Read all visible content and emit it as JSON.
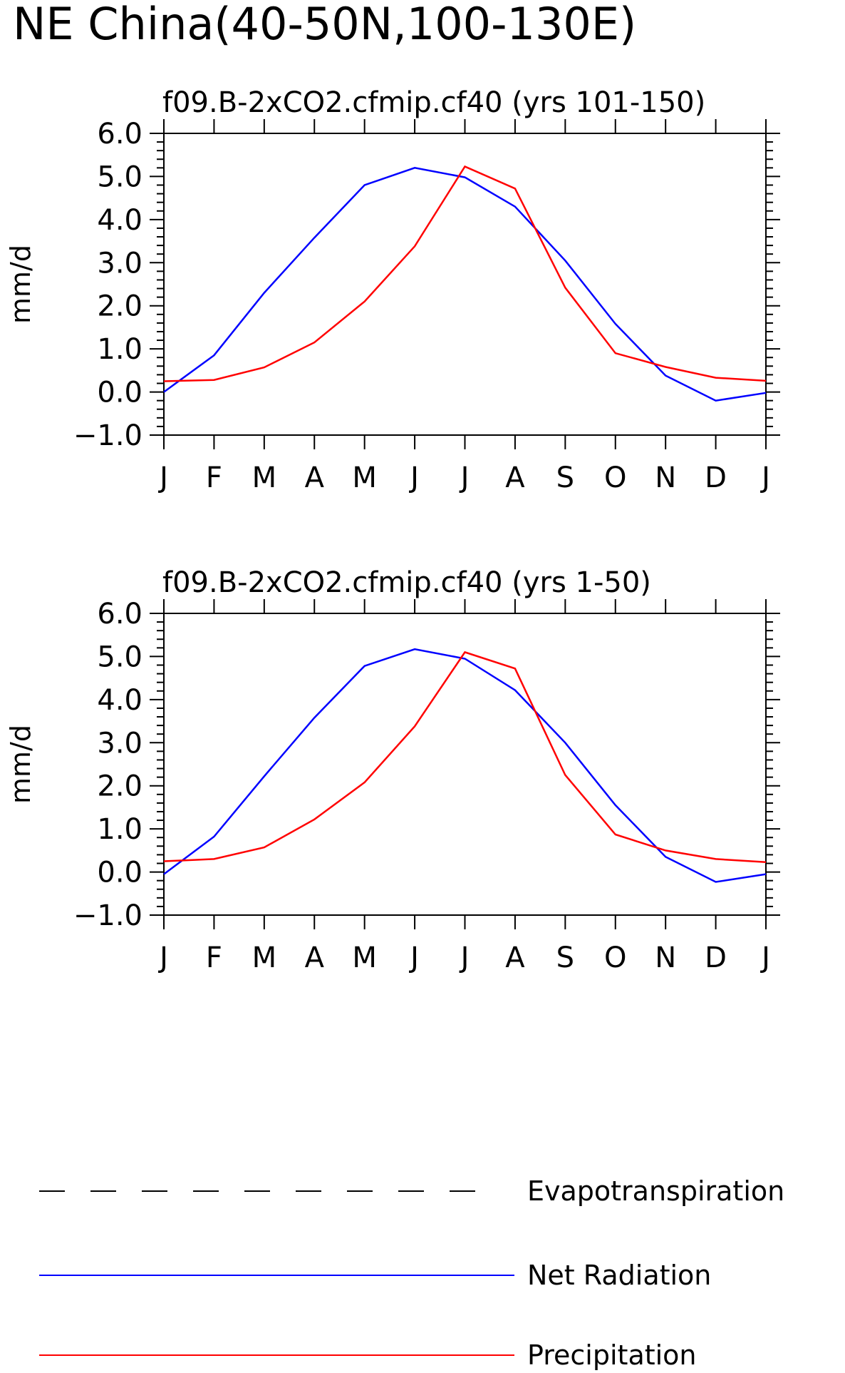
{
  "figure_title": "NE China(40-50N,100-130E)",
  "legend": [
    {
      "label": "Evapotranspiration",
      "style": "dashed",
      "color": "#000000"
    },
    {
      "label": "Net Radiation",
      "style": "solid",
      "color": "#0000ff"
    },
    {
      "label": "Precipitation",
      "style": "solid",
      "color": "#ff0000"
    }
  ],
  "chart_data": [
    {
      "type": "line",
      "title": "f09.B-2xCO2.cfmip.cf40 (yrs 101-150)",
      "xlabel": "",
      "ylabel": "mm/d",
      "categories": [
        "J",
        "F",
        "M",
        "A",
        "M",
        "J",
        "J",
        "A",
        "S",
        "O",
        "N",
        "D",
        "J"
      ],
      "yticks": [
        "-1.0",
        "0.0",
        "1.0",
        "2.0",
        "3.0",
        "4.0",
        "5.0",
        "6.0"
      ],
      "ylim": [
        -1.0,
        6.0
      ],
      "grid": false,
      "series": [
        {
          "name": "Net Radiation",
          "color": "#0000ff",
          "values": [
            0.0,
            0.85,
            2.3,
            3.58,
            4.8,
            5.2,
            4.98,
            4.3,
            3.05,
            1.58,
            0.38,
            -0.2,
            -0.02
          ]
        },
        {
          "name": "Precipitation",
          "color": "#ff0000",
          "values": [
            0.25,
            0.28,
            0.57,
            1.15,
            2.1,
            3.38,
            5.23,
            4.72,
            2.42,
            0.9,
            0.58,
            0.33,
            0.26
          ]
        }
      ]
    },
    {
      "type": "line",
      "title": "f09.B-2xCO2.cfmip.cf40 (yrs 1-50)",
      "xlabel": "",
      "ylabel": "mm/d",
      "categories": [
        "J",
        "F",
        "M",
        "A",
        "M",
        "J",
        "J",
        "A",
        "S",
        "O",
        "N",
        "D",
        "J"
      ],
      "yticks": [
        "-1.0",
        "0.0",
        "1.0",
        "2.0",
        "3.0",
        "4.0",
        "5.0",
        "6.0"
      ],
      "ylim": [
        -1.0,
        6.0
      ],
      "grid": false,
      "series": [
        {
          "name": "Net Radiation",
          "color": "#0000ff",
          "values": [
            -0.05,
            0.82,
            2.22,
            3.58,
            4.78,
            5.17,
            4.95,
            4.22,
            3.0,
            1.55,
            0.35,
            -0.23,
            -0.05
          ]
        },
        {
          "name": "Precipitation",
          "color": "#ff0000",
          "values": [
            0.25,
            0.3,
            0.57,
            1.22,
            2.08,
            3.38,
            5.1,
            4.72,
            2.25,
            0.87,
            0.5,
            0.3,
            0.23
          ]
        }
      ]
    }
  ]
}
